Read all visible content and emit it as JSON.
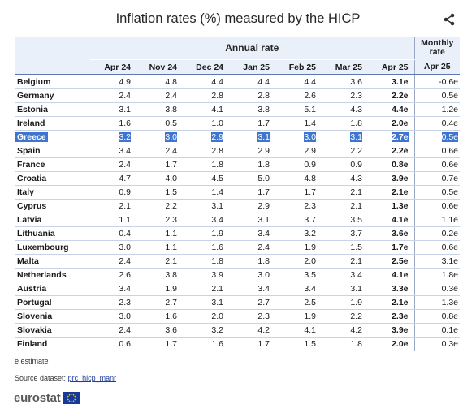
{
  "title": "Inflation rates (%) measured by the HICP",
  "header": {
    "annual_label": "Annual rate",
    "monthly_label": "Monthly rate",
    "periods": [
      "Apr 24",
      "Nov 24",
      "Dec 24",
      "Jan 25",
      "Feb 25",
      "Mar 25",
      "Apr 25"
    ],
    "monthly_period": "Apr 25"
  },
  "chart_data": {
    "type": "table",
    "title": "Inflation rates (%) measured by the HICP",
    "columns": [
      "Apr 24",
      "Nov 24",
      "Dec 24",
      "Jan 25",
      "Feb 25",
      "Mar 25",
      "Apr 25",
      "Apr 25"
    ],
    "rows": [
      {
        "country": "Belgium",
        "values": [
          "4.9",
          "4.8",
          "4.4",
          "4.4",
          "4.4",
          "3.6",
          "3.1e",
          "-0.6e"
        ]
      },
      {
        "country": "Germany",
        "values": [
          "2.4",
          "2.4",
          "2.8",
          "2.8",
          "2.6",
          "2.3",
          "2.2e",
          "0.5e"
        ]
      },
      {
        "country": "Estonia",
        "values": [
          "3.1",
          "3.8",
          "4.1",
          "3.8",
          "5.1",
          "4.3",
          "4.4e",
          "1.2e"
        ]
      },
      {
        "country": "Ireland",
        "values": [
          "1.6",
          "0.5",
          "1.0",
          "1.7",
          "1.4",
          "1.8",
          "2.0e",
          "0.4e"
        ]
      },
      {
        "country": "Greece",
        "values": [
          "3.2",
          "3.0",
          "2.9",
          "3.1",
          "3.0",
          "3.1",
          "2.7e",
          "0.5e"
        ]
      },
      {
        "country": "Spain",
        "values": [
          "3.4",
          "2.4",
          "2.8",
          "2.9",
          "2.9",
          "2.2",
          "2.2e",
          "0.6e"
        ]
      },
      {
        "country": "France",
        "values": [
          "2.4",
          "1.7",
          "1.8",
          "1.8",
          "0.9",
          "0.9",
          "0.8e",
          "0.6e"
        ]
      },
      {
        "country": "Croatia",
        "values": [
          "4.7",
          "4.0",
          "4.5",
          "5.0",
          "4.8",
          "4.3",
          "3.9e",
          "0.7e"
        ]
      },
      {
        "country": "Italy",
        "values": [
          "0.9",
          "1.5",
          "1.4",
          "1.7",
          "1.7",
          "2.1",
          "2.1e",
          "0.5e"
        ]
      },
      {
        "country": "Cyprus",
        "values": [
          "2.1",
          "2.2",
          "3.1",
          "2.9",
          "2.3",
          "2.1",
          "1.3e",
          "0.6e"
        ]
      },
      {
        "country": "Latvia",
        "values": [
          "1.1",
          "2.3",
          "3.4",
          "3.1",
          "3.7",
          "3.5",
          "4.1e",
          "1.1e"
        ]
      },
      {
        "country": "Lithuania",
        "values": [
          "0.4",
          "1.1",
          "1.9",
          "3.4",
          "3.2",
          "3.7",
          "3.6e",
          "0.2e"
        ]
      },
      {
        "country": "Luxembourg",
        "values": [
          "3.0",
          "1.1",
          "1.6",
          "2.4",
          "1.9",
          "1.5",
          "1.7e",
          "0.6e"
        ]
      },
      {
        "country": "Malta",
        "values": [
          "2.4",
          "2.1",
          "1.8",
          "1.8",
          "2.0",
          "2.1",
          "2.5e",
          "3.1e"
        ]
      },
      {
        "country": "Netherlands",
        "values": [
          "2.6",
          "3.8",
          "3.9",
          "3.0",
          "3.5",
          "3.4",
          "4.1e",
          "1.8e"
        ]
      },
      {
        "country": "Austria",
        "values": [
          "3.4",
          "1.9",
          "2.1",
          "3.4",
          "3.4",
          "3.1",
          "3.3e",
          "0.3e"
        ]
      },
      {
        "country": "Portugal",
        "values": [
          "2.3",
          "2.7",
          "3.1",
          "2.7",
          "2.5",
          "1.9",
          "2.1e",
          "1.3e"
        ]
      },
      {
        "country": "Slovenia",
        "values": [
          "3.0",
          "1.6",
          "2.0",
          "2.3",
          "1.9",
          "2.2",
          "2.3e",
          "0.8e"
        ]
      },
      {
        "country": "Slovakia",
        "values": [
          "2.4",
          "3.6",
          "3.2",
          "4.2",
          "4.1",
          "4.2",
          "3.9e",
          "0.1e"
        ]
      },
      {
        "country": "Finland",
        "values": [
          "0.6",
          "1.7",
          "1.6",
          "1.7",
          "1.5",
          "1.8",
          "2.0e",
          "0.3e"
        ]
      }
    ],
    "selected_row": "Greece"
  },
  "footnote": "e estimate",
  "source": {
    "label": "Source dataset:",
    "link": "prc_hicp_manr"
  },
  "logo": {
    "text": "eurostat"
  },
  "colors": {
    "header_bg": "#e9f0f9",
    "header_rule": "#5f76b5",
    "selection": "#3f74cf",
    "row_border": "#c9d3e6"
  }
}
